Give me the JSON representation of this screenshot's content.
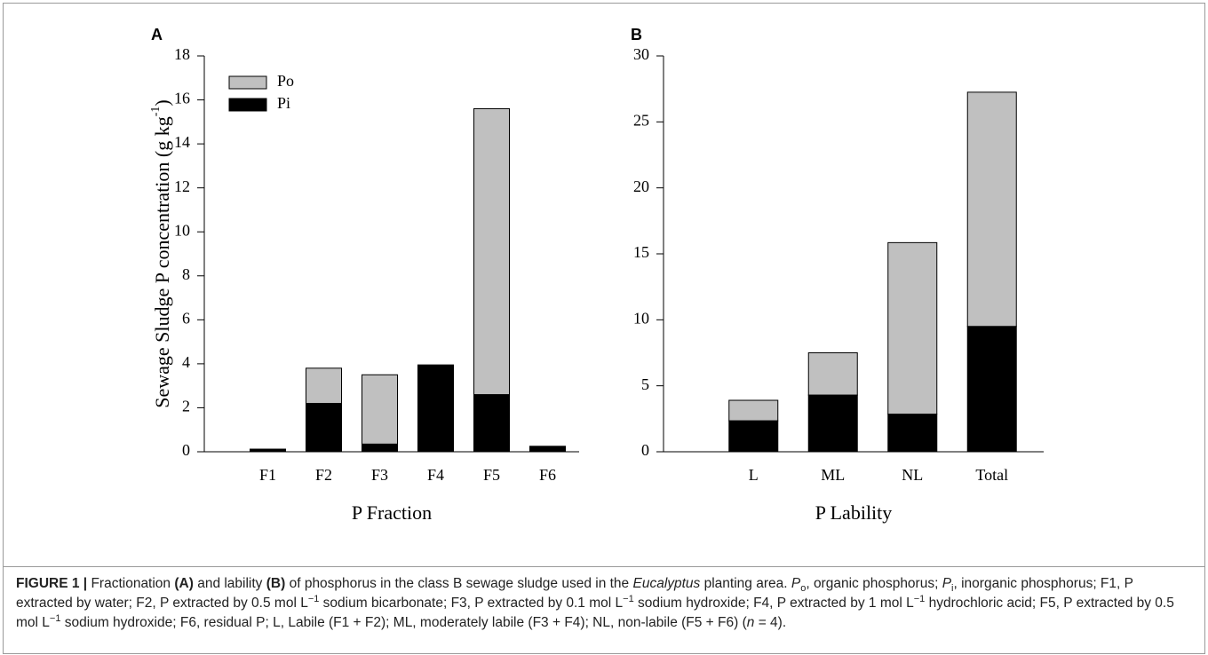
{
  "chart_data": [
    {
      "type": "stacked-bar",
      "panel_label": "A",
      "xlabel": "P Fraction",
      "ylabel": [
        {
          "text": "Sewage Sludge P concentration (g kg"
        },
        {
          "text": "-1",
          "style": "sup"
        },
        {
          "text": ")"
        }
      ],
      "categories": [
        "F1",
        "F2",
        "F3",
        "F4",
        "F5",
        "F6"
      ],
      "series": [
        {
          "name": "Pi",
          "color": "#000000",
          "values": [
            0.12,
            2.2,
            0.35,
            3.95,
            2.6,
            0.25
          ]
        },
        {
          "name": "Po",
          "color": "#c0c0c0",
          "values": [
            0,
            1.6,
            3.15,
            0,
            13.0,
            0
          ]
        }
      ],
      "ylim": [
        0,
        18
      ],
      "yticks": [
        0,
        2,
        4,
        6,
        8,
        10,
        12,
        14,
        16,
        18
      ],
      "legend": "upper left"
    },
    {
      "type": "stacked-bar",
      "panel_label": "B",
      "xlabel": "P Lability",
      "categories": [
        "L",
        "ML",
        "NL",
        "Total"
      ],
      "series": [
        {
          "color": "#000000",
          "values": [
            2.35,
            4.3,
            2.85,
            9.5
          ]
        },
        {
          "color": "#c0c0c0",
          "values": [
            1.55,
            3.2,
            13.0,
            17.75
          ]
        }
      ],
      "ylim": [
        0,
        30
      ],
      "yticks": [
        0,
        5,
        10,
        15,
        20,
        25,
        30
      ]
    }
  ],
  "caption": [
    {
      "text": "FIGURE 1 |",
      "style": "bold"
    },
    {
      "text": " Fractionation "
    },
    {
      "text": "(A)",
      "style": "bold"
    },
    {
      "text": " and lability "
    },
    {
      "text": "(B)",
      "style": "bold"
    },
    {
      "text": " of phosphorus in the class B sewage sludge used in the "
    },
    {
      "text": "Eucalyptus",
      "style": "italic"
    },
    {
      "text": " planting area. "
    },
    {
      "text": "P",
      "style": "italic"
    },
    {
      "text": "o",
      "style": "sub"
    },
    {
      "text": ", organic phosphorus; "
    },
    {
      "text": "P",
      "style": "italic"
    },
    {
      "text": "i",
      "style": "sub"
    },
    {
      "text": ", inorganic phosphorus; F1, P extracted by water; F2, P extracted by 0.5 mol L"
    },
    {
      "text": "−1",
      "style": "sup"
    },
    {
      "text": " sodium bicarbonate; F3, P extracted by 0.1 mol L"
    },
    {
      "text": "−1",
      "style": "sup"
    },
    {
      "text": " sodium hydroxide; F4, P extracted by 1 mol L"
    },
    {
      "text": "−1",
      "style": "sup"
    },
    {
      "text": " hydrochloric acid; F5, P extracted by 0.5 mol L"
    },
    {
      "text": "−1",
      "style": "sup"
    },
    {
      "text": " sodium hydroxide; F6, residual P; L, Labile (F1 + F2); ML, moderately labile (F3 + F4); NL, non-labile (F5 + F6) ("
    },
    {
      "text": "n",
      "style": "italic"
    },
    {
      "text": " = 4)."
    }
  ]
}
